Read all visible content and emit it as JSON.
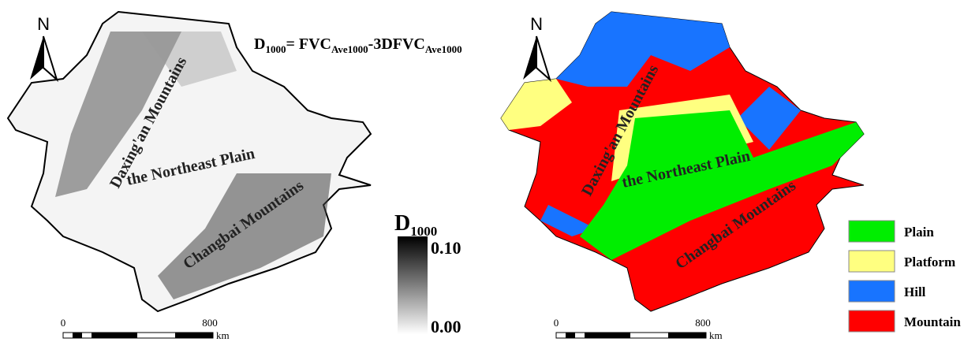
{
  "left": {
    "north": "N",
    "formula": {
      "d": "D",
      "d_sub": "1000",
      "eq": "= FVC",
      "sub1": "Ave1000",
      "minus": "-3DFVC",
      "sub2": "Ave1000"
    },
    "labels": [
      "Daxing'an Mountains",
      "the Northeast Plain",
      "Changbai Mountains"
    ],
    "colorbar": {
      "title": "D",
      "subscript": "1000",
      "max": "0.10",
      "min": "0.00"
    },
    "scale": {
      "start": "0",
      "end": "800",
      "unit": "km"
    }
  },
  "right": {
    "north": "N",
    "labels": [
      "Daxing'an Mountains",
      "the Northeast Plain",
      "Changbai Mountains"
    ],
    "scale": {
      "start": "0",
      "end": "800",
      "unit": "km"
    },
    "legend": [
      {
        "label": "Plain",
        "color": "#00ee00"
      },
      {
        "label": "Platform",
        "color": "#ffff80"
      },
      {
        "label": "Hill",
        "color": "#1874ff"
      },
      {
        "label": "Mountain",
        "color": "#ff0000"
      }
    ]
  }
}
